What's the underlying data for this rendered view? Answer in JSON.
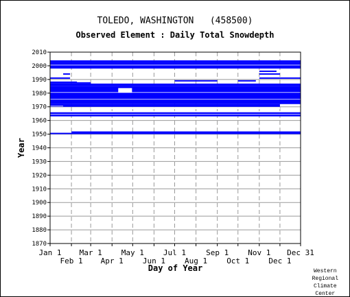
{
  "chart_data": {
    "type": "heatmap",
    "title": "TOLEDO, WASHINGTON   (458500)",
    "subtitle": "Observed Element : Daily Total Snowdepth",
    "xlabel": "Day of Year",
    "ylabel": "Year",
    "xlim": [
      1,
      365
    ],
    "ylim": [
      1870,
      2010
    ],
    "y_ticks": [
      1870,
      1880,
      1890,
      1900,
      1910,
      1920,
      1930,
      1940,
      1950,
      1960,
      1970,
      1980,
      1990,
      2000,
      2010
    ],
    "x_ticks_row1": [
      {
        "label": "Jan 1",
        "day": 1
      },
      {
        "label": "Mar 1",
        "day": 60
      },
      {
        "label": "May 1",
        "day": 121
      },
      {
        "label": "Jul 1",
        "day": 182
      },
      {
        "label": "Sep 1",
        "day": 244
      },
      {
        "label": "Nov 1",
        "day": 305
      },
      {
        "label": "Dec 31",
        "day": 365
      }
    ],
    "x_ticks_row2": [
      {
        "label": "Feb 1",
        "day": 32
      },
      {
        "label": "Apr 1",
        "day": 91
      },
      {
        "label": "Jun 1",
        "day": 152
      },
      {
        "label": "Aug 1",
        "day": 213
      },
      {
        "label": "Oct 1",
        "day": 274
      },
      {
        "label": "Dec 1",
        "day": 335
      }
    ],
    "grid": true,
    "data_color": "#0000ff",
    "grid_color": "#999999",
    "observed_year_ranges": [
      {
        "start_year": 1950,
        "end_year": 1951,
        "start_day": 1,
        "end_day": 365
      },
      {
        "start_year": 1951,
        "end_year": 1952,
        "start_day": 32,
        "end_day": 365
      },
      {
        "start_year": 1963,
        "end_year": 1966,
        "start_day": 1,
        "end_day": 365
      },
      {
        "start_year": 1970,
        "end_year": 1972,
        "start_day": 1,
        "end_day": 335
      },
      {
        "start_year": 1972,
        "end_year": 1985,
        "start_day": 1,
        "end_day": 365
      },
      {
        "start_year": 1985,
        "end_year": 1987,
        "start_day": 1,
        "end_day": 365
      },
      {
        "start_year": 1998,
        "end_year": 2001,
        "start_day": 1,
        "end_day": 365
      },
      {
        "start_year": 2001,
        "end_year": 2002,
        "start_day": 1,
        "end_day": 365
      },
      {
        "start_year": 2002,
        "end_year": 2004,
        "start_day": 1,
        "end_day": 365
      }
    ],
    "missing_year_ranges": [
      {
        "start_year": 1964,
        "end_year": 1965,
        "start_day": 1,
        "end_day": 365
      },
      {
        "start_year": 1966,
        "end_year": 1967,
        "start_day": 152,
        "end_day": 182
      },
      {
        "start_year": 1967,
        "end_year": 1968,
        "start_day": 152,
        "end_day": 182
      },
      {
        "start_year": 1970,
        "end_year": 1971,
        "start_day": 1,
        "end_day": 20
      },
      {
        "start_year": 1971,
        "end_year": 1972,
        "start_day": 335,
        "end_day": 365
      },
      {
        "start_year": 1968,
        "end_year": 1970,
        "start_day": 60,
        "end_day": 335
      },
      {
        "start_year": 1975,
        "end_year": 1976,
        "start_day": 1,
        "end_day": 365
      },
      {
        "start_year": 1980,
        "end_year": 1981,
        "start_day": 1,
        "end_day": 365
      },
      {
        "start_year": 1980,
        "end_year": 1984,
        "start_day": 100,
        "end_day": 120
      },
      {
        "start_year": 2000,
        "end_year": 2001,
        "start_day": 1,
        "end_day": 365
      }
    ],
    "scattered_years": [
      {
        "year": 1987.5,
        "start_day": 1,
        "end_day": 60
      },
      {
        "year": 1988,
        "start_day": 1,
        "end_day": 40
      },
      {
        "year": 1989,
        "start_day": 182,
        "end_day": 244
      },
      {
        "year": 1991,
        "start_day": 1,
        "end_day": 30
      },
      {
        "year": 1991,
        "start_day": 305,
        "end_day": 365
      },
      {
        "year": 1994,
        "start_day": 305,
        "end_day": 335
      },
      {
        "year": 1996,
        "start_day": 305,
        "end_day": 330
      },
      {
        "year": 1999,
        "start_day": 244,
        "end_day": 300
      },
      {
        "year": 1989,
        "start_day": 274,
        "end_day": 300
      },
      {
        "year": 1994,
        "start_day": 20,
        "end_day": 30
      }
    ]
  },
  "footer": {
    "line1": "Western",
    "line2": "Regional",
    "line3": "Climate",
    "line4": "Center"
  }
}
